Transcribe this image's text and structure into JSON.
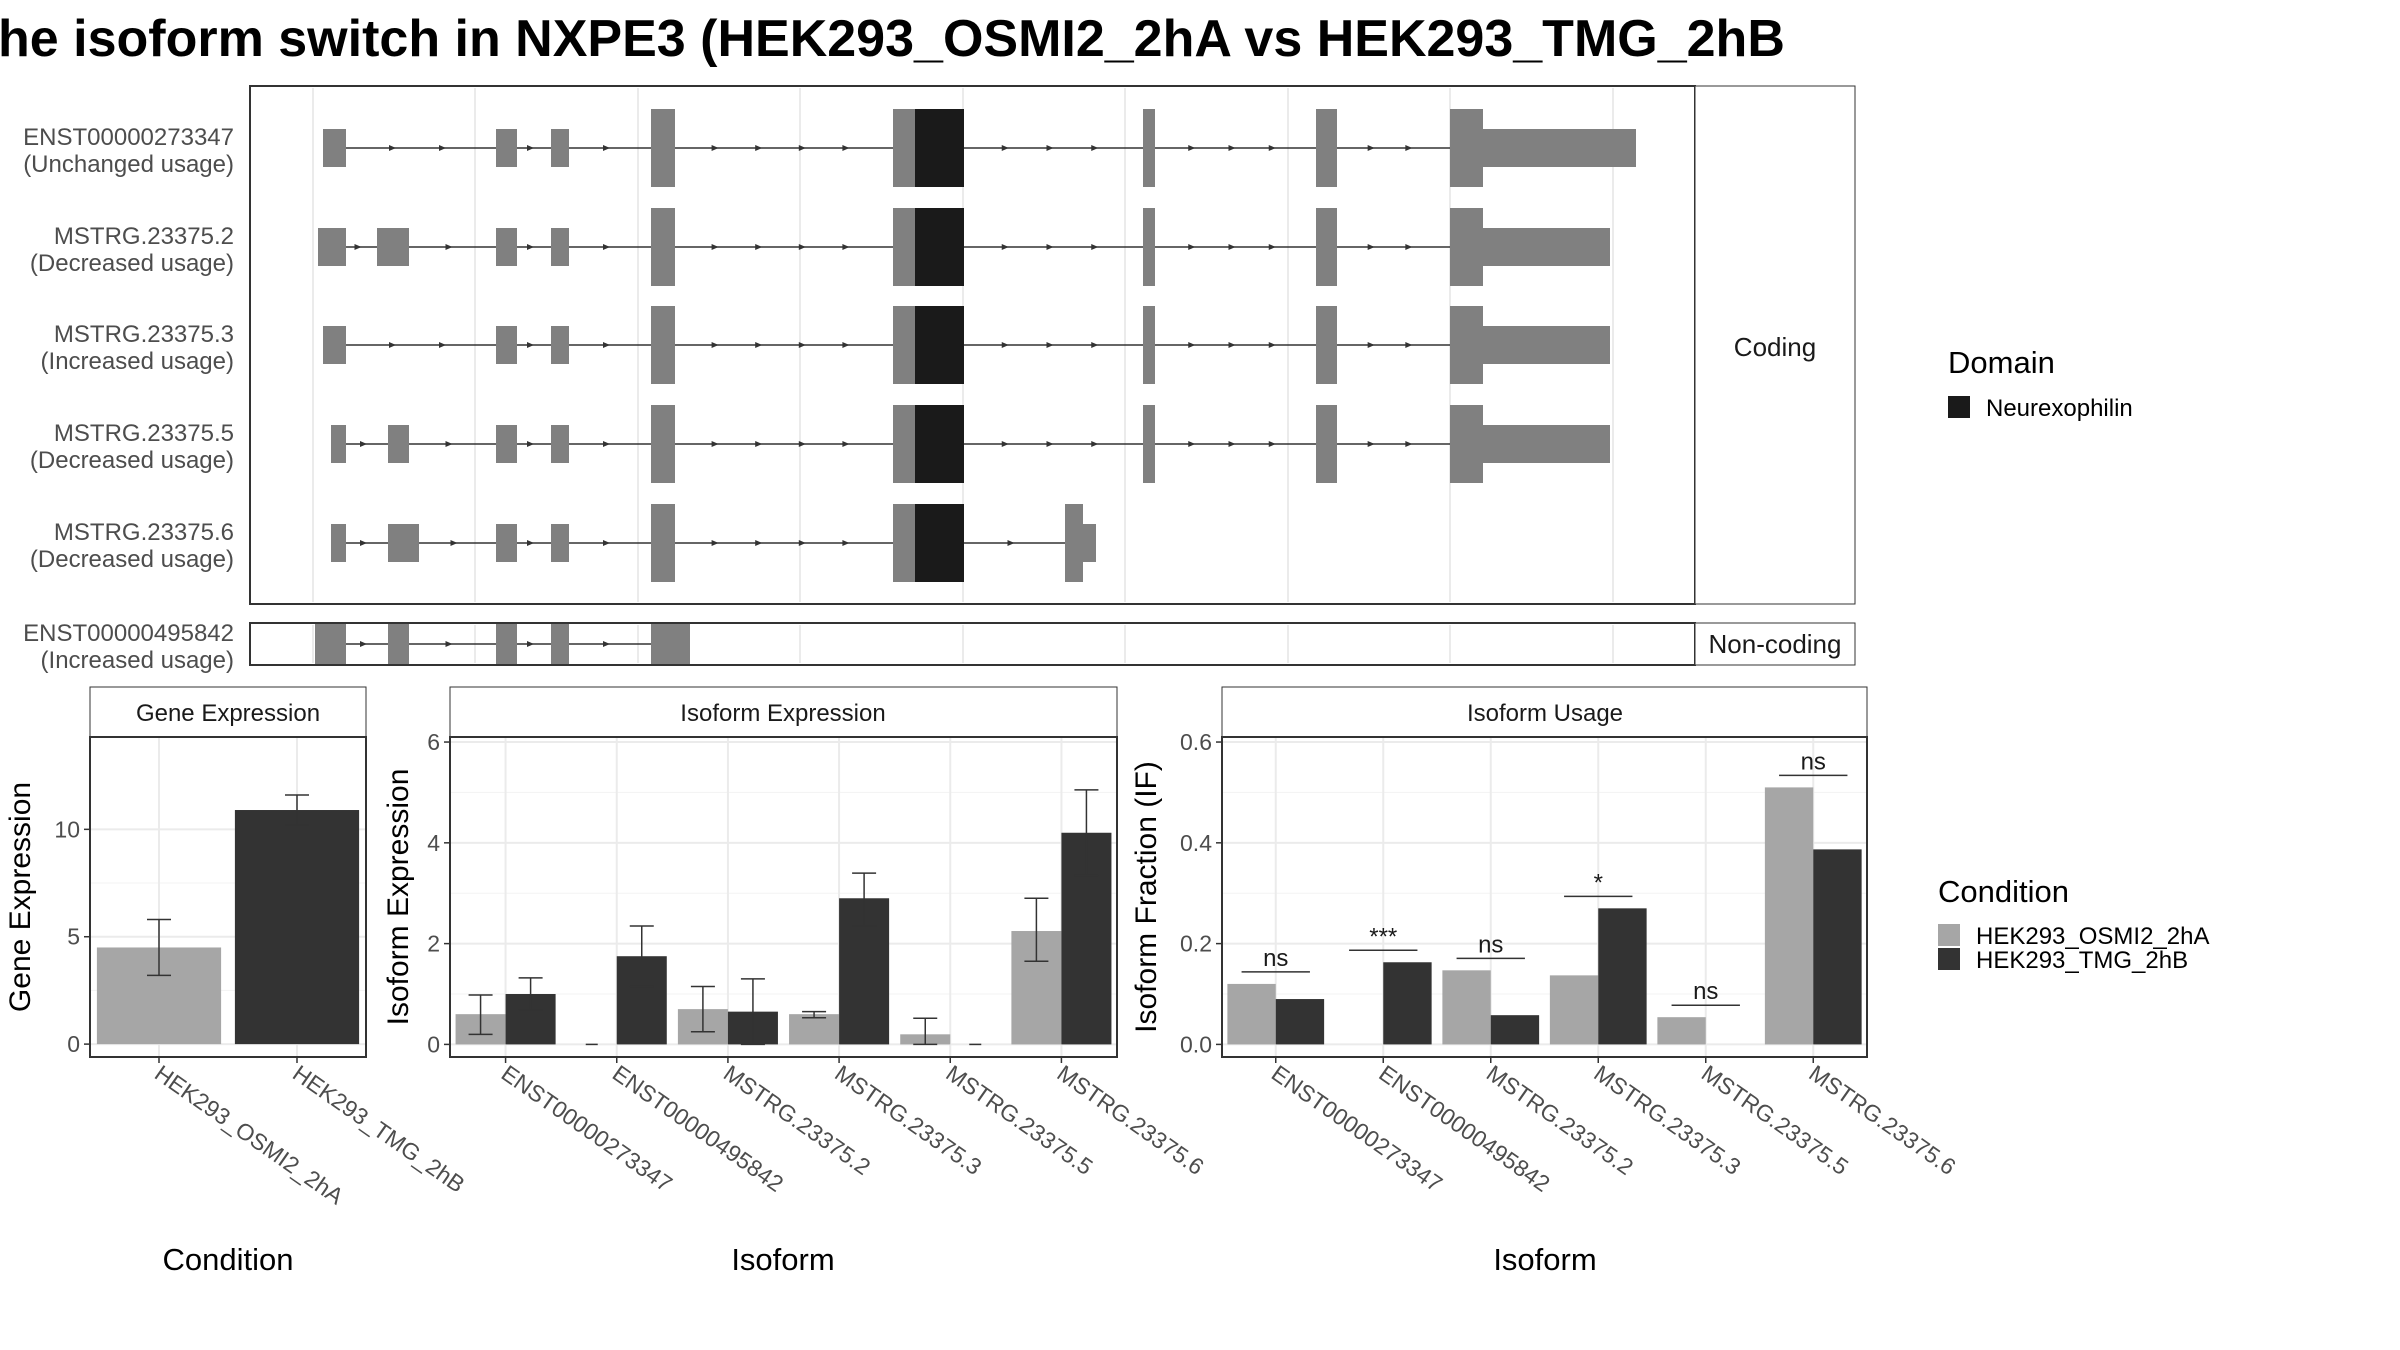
{
  "title": "he isoform switch in NXPE3 (HEK293_OSMI2_2hA vs HEK293_TMG_2hB",
  "structure": {
    "facets": {
      "coding": "Coding",
      "noncoding": "Non-coding"
    },
    "transcripts": [
      {
        "id": "ENST00000273347",
        "usage": "(Unchanged usage)"
      },
      {
        "id": "MSTRG.23375.2",
        "usage": "(Decreased usage)"
      },
      {
        "id": "MSTRG.23375.3",
        "usage": "(Increased usage)"
      },
      {
        "id": "MSTRG.23375.5",
        "usage": "(Decreased usage)"
      },
      {
        "id": "MSTRG.23375.6",
        "usage": "(Decreased usage)"
      },
      {
        "id": "ENST00000495842",
        "usage": "(Increased usage)"
      }
    ],
    "legend": {
      "title": "Domain",
      "items": [
        {
          "label": "Neurexophilin",
          "color": "#1a1a1a"
        }
      ]
    },
    "colors": {
      "exon": "#808080",
      "domain": "#1a1a1a"
    }
  },
  "condition_legend": {
    "title": "Condition",
    "items": [
      {
        "label": "HEK293_OSMI2_2hA",
        "color": "#a6a6a6"
      },
      {
        "label": "HEK293_TMG_2hB",
        "color": "#333333"
      }
    ]
  },
  "chart_data": [
    {
      "type": "bar",
      "title": "Gene Expression",
      "xlabel": "Condition",
      "ylabel": "Gene Expression",
      "categories": [
        "HEK293_OSMI2_2hA",
        "HEK293_TMG_2hB"
      ],
      "values": [
        4.5,
        10.9
      ],
      "error_low": [
        3.2,
        10.2
      ],
      "error_high": [
        5.8,
        11.6
      ],
      "ylim": [
        -0.6,
        14.3
      ],
      "yticks": [
        0,
        5,
        10
      ],
      "colors": [
        "#a6a6a6",
        "#333333"
      ],
      "grid": true
    },
    {
      "type": "bar",
      "title": "Isoform Expression",
      "xlabel": "Isoform",
      "ylabel": "Isoform Expression",
      "categories": [
        "ENST00000273347",
        "ENST00000495842",
        "MSTRG.23375.2",
        "MSTRG.23375.3",
        "MSTRG.23375.5",
        "MSTRG.23375.6"
      ],
      "series": [
        {
          "name": "HEK293_OSMI2_2hA",
          "values": [
            0.6,
            0.0,
            0.7,
            0.6,
            0.2,
            2.25
          ],
          "error_low": [
            0.2,
            0.0,
            0.25,
            0.53,
            0.0,
            1.65
          ],
          "error_high": [
            0.98,
            0.0,
            1.15,
            0.65,
            0.52,
            2.9
          ]
        },
        {
          "name": "HEK293_TMG_2hB",
          "values": [
            1.0,
            1.75,
            0.65,
            2.9,
            0.0,
            4.2
          ],
          "error_low": [
            0.68,
            1.15,
            0.0,
            2.35,
            0.0,
            3.35
          ],
          "error_high": [
            1.32,
            2.35,
            1.3,
            3.4,
            0.0,
            5.05
          ]
        }
      ],
      "ylim": [
        -0.25,
        6.1
      ],
      "yticks": [
        0,
        2,
        4,
        6
      ],
      "grid": true
    },
    {
      "type": "bar",
      "title": "Isoform Usage",
      "xlabel": "Isoform",
      "ylabel": "Isoform Fraction (IF)",
      "categories": [
        "ENST00000273347",
        "ENST00000495842",
        "MSTRG.23375.2",
        "MSTRG.23375.3",
        "MSTRG.23375.5",
        "MSTRG.23375.6"
      ],
      "series": [
        {
          "name": "HEK293_OSMI2_2hA",
          "values": [
            0.12,
            0.0,
            0.147,
            0.137,
            0.054,
            0.51
          ]
        },
        {
          "name": "HEK293_TMG_2hB",
          "values": [
            0.09,
            0.163,
            0.058,
            0.27,
            0.0,
            0.387
          ]
        }
      ],
      "significance": [
        "ns",
        "***",
        "ns",
        "*",
        "ns",
        "ns"
      ],
      "ylim": [
        -0.025,
        0.61
      ],
      "yticks": [
        0.0,
        0.2,
        0.4,
        0.6
      ],
      "grid": true
    }
  ]
}
